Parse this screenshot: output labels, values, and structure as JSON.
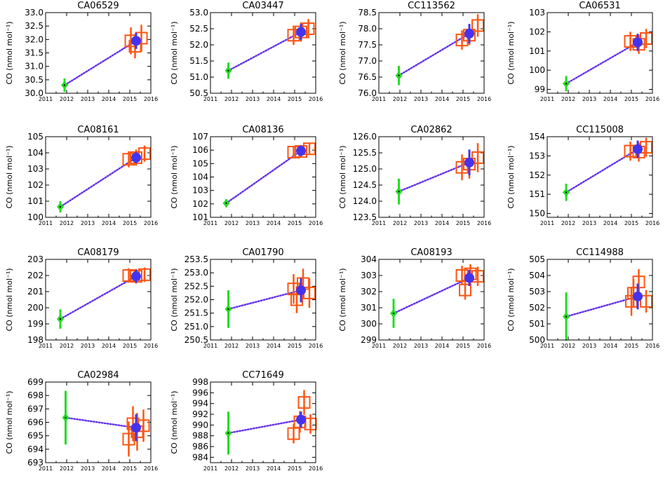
{
  "chart_data": [
    {
      "type": "scatter",
      "title": "CA06529",
      "ylabel": "CO (nmol mol⁻¹)",
      "xlim": [
        2011,
        2016
      ],
      "ylim": [
        30.0,
        33.0
      ],
      "yticks": [
        "30.0",
        "30.5",
        "31.0",
        "31.5",
        "32.0",
        "32.5",
        "33.0"
      ],
      "xticks": [
        "2011",
        "2012",
        "2013",
        "2014",
        "2015",
        "2016"
      ],
      "green": {
        "x": 2011.9,
        "y": 30.3,
        "err": 0.25
      },
      "blue": {
        "x": 2015.3,
        "y": 31.95,
        "err": 0.3
      },
      "orange": [
        {
          "x": 2015.05,
          "y": 31.95,
          "err": 0.5
        },
        {
          "x": 2015.25,
          "y": 31.75,
          "err": 0.45
        },
        {
          "x": 2015.55,
          "y": 32.05,
          "err": 0.5
        }
      ]
    },
    {
      "type": "scatter",
      "title": "CA03447",
      "ylabel": "CO (nmol mol⁻¹)",
      "xlim": [
        2011,
        2016
      ],
      "ylim": [
        50.5,
        53.0
      ],
      "yticks": [
        "50.5",
        "51.0",
        "51.5",
        "52.0",
        "52.5",
        "53.0"
      ],
      "xticks": [
        "2011",
        "2012",
        "2013",
        "2014",
        "2015",
        "2016"
      ],
      "green": {
        "x": 2011.85,
        "y": 51.2,
        "err": 0.25
      },
      "blue": {
        "x": 2015.3,
        "y": 52.4,
        "err": 0.25
      },
      "orange": [
        {
          "x": 2014.95,
          "y": 52.3,
          "err": 0.3
        },
        {
          "x": 2015.3,
          "y": 52.4,
          "err": 0.3
        },
        {
          "x": 2015.65,
          "y": 52.5,
          "err": 0.3
        }
      ]
    },
    {
      "type": "scatter",
      "title": "CC113562",
      "ylabel": "CO (nmol mol⁻¹)",
      "xlim": [
        2011,
        2016
      ],
      "ylim": [
        76.0,
        78.5
      ],
      "yticks": [
        "76.0",
        "76.5",
        "77.0",
        "77.5",
        "78.0",
        "78.5"
      ],
      "xticks": [
        "2011",
        "2012",
        "2013",
        "2014",
        "2015",
        "2016"
      ],
      "green": {
        "x": 2011.95,
        "y": 76.55,
        "err": 0.3
      },
      "blue": {
        "x": 2015.3,
        "y": 77.85,
        "err": 0.3
      },
      "orange": [
        {
          "x": 2014.95,
          "y": 77.65,
          "err": 0.3
        },
        {
          "x": 2015.3,
          "y": 77.8,
          "err": 0.3
        },
        {
          "x": 2015.7,
          "y": 78.1,
          "err": 0.35
        }
      ]
    },
    {
      "type": "scatter",
      "title": "CA06531",
      "ylabel": "CO (nmol mol⁻¹)",
      "xlim": [
        2011,
        2016
      ],
      "ylim": [
        98.8,
        103
      ],
      "yticks": [
        "99",
        "100",
        "101",
        "102",
        "103"
      ],
      "xticks": [
        "2011",
        "2012",
        "2013",
        "2014",
        "2015",
        "2016"
      ],
      "green": {
        "x": 2011.9,
        "y": 99.3,
        "err": 0.4
      },
      "blue": {
        "x": 2015.3,
        "y": 101.45,
        "err": 0.45
      },
      "orange": [
        {
          "x": 2014.95,
          "y": 101.5,
          "err": 0.5
        },
        {
          "x": 2015.35,
          "y": 101.35,
          "err": 0.5
        },
        {
          "x": 2015.7,
          "y": 101.65,
          "err": 0.5
        }
      ]
    },
    {
      "type": "scatter",
      "title": "CA08161",
      "ylabel": "CO (nmol mol⁻¹)",
      "xlim": [
        2011,
        2016
      ],
      "ylim": [
        100,
        105
      ],
      "yticks": [
        "100",
        "101",
        "102",
        "103",
        "104",
        "105"
      ],
      "xticks": [
        "2011",
        "2012",
        "2013",
        "2014",
        "2015",
        "2016"
      ],
      "green": {
        "x": 2011.7,
        "y": 100.65,
        "err": 0.35
      },
      "blue": {
        "x": 2015.3,
        "y": 103.7,
        "err": 0.35
      },
      "orange": [
        {
          "x": 2014.95,
          "y": 103.6,
          "err": 0.5
        },
        {
          "x": 2015.3,
          "y": 103.7,
          "err": 0.5
        },
        {
          "x": 2015.7,
          "y": 103.95,
          "err": 0.5
        }
      ]
    },
    {
      "type": "scatter",
      "title": "CA08136",
      "ylabel": "CO (nmol mol⁻¹)",
      "xlim": [
        2011,
        2016
      ],
      "ylim": [
        101,
        107
      ],
      "yticks": [
        "101",
        "102",
        "103",
        "104",
        "105",
        "106",
        "107"
      ],
      "xticks": [
        "2011",
        "2012",
        "2013",
        "2014",
        "2015",
        "2016"
      ],
      "green": {
        "x": 2011.75,
        "y": 102.05,
        "err": 0.3
      },
      "blue": {
        "x": 2015.3,
        "y": 105.95,
        "err": 0.4
      },
      "orange": [
        {
          "x": 2014.95,
          "y": 105.85,
          "err": 0.45
        },
        {
          "x": 2015.3,
          "y": 105.9,
          "err": 0.45
        },
        {
          "x": 2015.7,
          "y": 106.1,
          "err": 0.45
        }
      ]
    },
    {
      "type": "scatter",
      "title": "CA02862",
      "ylabel": "CO (nmol mol⁻¹)",
      "xlim": [
        2011,
        2016
      ],
      "ylim": [
        123.5,
        126.0
      ],
      "yticks": [
        "123.5",
        "124.0",
        "124.5",
        "125.0",
        "125.5",
        "126.0"
      ],
      "xticks": [
        "2011",
        "2012",
        "2013",
        "2014",
        "2015",
        "2016"
      ],
      "green": {
        "x": 2011.95,
        "y": 124.3,
        "err": 0.4
      },
      "blue": {
        "x": 2015.3,
        "y": 125.2,
        "err": 0.4
      },
      "orange": [
        {
          "x": 2014.95,
          "y": 125.05,
          "err": 0.4
        },
        {
          "x": 2015.3,
          "y": 125.15,
          "err": 0.45
        },
        {
          "x": 2015.7,
          "y": 125.35,
          "err": 0.45
        }
      ]
    },
    {
      "type": "scatter",
      "title": "CC115008",
      "ylabel": "CO (nmol mol⁻¹)",
      "xlim": [
        2011,
        2016
      ],
      "ylim": [
        149.8,
        154
      ],
      "yticks": [
        "150",
        "151",
        "152",
        "153",
        "154"
      ],
      "xticks": [
        "2011",
        "2012",
        "2013",
        "2014",
        "2015",
        "2016"
      ],
      "green": {
        "x": 2011.9,
        "y": 151.1,
        "err": 0.45
      },
      "blue": {
        "x": 2015.3,
        "y": 153.35,
        "err": 0.45
      },
      "orange": [
        {
          "x": 2014.95,
          "y": 153.25,
          "err": 0.5
        },
        {
          "x": 2015.35,
          "y": 153.2,
          "err": 0.5
        },
        {
          "x": 2015.7,
          "y": 153.45,
          "err": 0.5
        }
      ]
    },
    {
      "type": "scatter",
      "title": "CA08179",
      "ylabel": "CO (nmol mol⁻¹)",
      "xlim": [
        2011,
        2016
      ],
      "ylim": [
        198,
        203
      ],
      "yticks": [
        "198",
        "199",
        "200",
        "201",
        "202",
        "203"
      ],
      "xticks": [
        "2011",
        "2012",
        "2013",
        "2014",
        "2015",
        "2016"
      ],
      "green": {
        "x": 2011.7,
        "y": 199.3,
        "err": 0.6
      },
      "blue": {
        "x": 2015.3,
        "y": 201.95,
        "err": 0.4
      },
      "orange": [
        {
          "x": 2014.95,
          "y": 202.0,
          "err": 0.45
        },
        {
          "x": 2015.3,
          "y": 201.95,
          "err": 0.45
        },
        {
          "x": 2015.7,
          "y": 202.05,
          "err": 0.45
        }
      ]
    },
    {
      "type": "scatter",
      "title": "CA01790",
      "ylabel": "CO (nmol mol⁻¹)",
      "xlim": [
        2011,
        2016
      ],
      "ylim": [
        250.5,
        253.5
      ],
      "yticks": [
        "250.5",
        "251.0",
        "251.5",
        "252.0",
        "252.5",
        "253.0",
        "253.5"
      ],
      "xticks": [
        "2011",
        "2012",
        "2013",
        "2014",
        "2015",
        "2016"
      ],
      "green": {
        "x": 2011.85,
        "y": 251.65,
        "err": 0.7
      },
      "blue": {
        "x": 2015.3,
        "y": 252.35,
        "err": 0.45
      },
      "orange": [
        {
          "x": 2014.95,
          "y": 252.4,
          "err": 0.55
        },
        {
          "x": 2015.1,
          "y": 252.0,
          "err": 0.5
        },
        {
          "x": 2015.4,
          "y": 252.6,
          "err": 0.55
        },
        {
          "x": 2015.7,
          "y": 252.25,
          "err": 0.55
        }
      ]
    },
    {
      "type": "scatter",
      "title": "CA08193",
      "ylabel": "CO (nmol mol⁻¹)",
      "xlim": [
        2011,
        2016
      ],
      "ylim": [
        299,
        304
      ],
      "yticks": [
        "299",
        "300",
        "301",
        "302",
        "303",
        "304"
      ],
      "xticks": [
        "2011",
        "2012",
        "2013",
        "2014",
        "2015",
        "2016"
      ],
      "green": {
        "x": 2011.7,
        "y": 300.65,
        "err": 0.9
      },
      "blue": {
        "x": 2015.3,
        "y": 302.85,
        "err": 0.5
      },
      "orange": [
        {
          "x": 2014.95,
          "y": 303.0,
          "err": 0.6
        },
        {
          "x": 2015.1,
          "y": 302.1,
          "err": 0.6
        },
        {
          "x": 2015.35,
          "y": 303.1,
          "err": 0.6
        },
        {
          "x": 2015.7,
          "y": 302.95,
          "err": 0.6
        }
      ]
    },
    {
      "type": "scatter",
      "title": "CC114988",
      "ylabel": "CO (nmol mol⁻¹)",
      "xlim": [
        2011,
        2016
      ],
      "ylim": [
        500,
        505
      ],
      "yticks": [
        "500",
        "501",
        "502",
        "503",
        "504",
        "505"
      ],
      "xticks": [
        "2011",
        "2012",
        "2013",
        "2014",
        "2015",
        "2016"
      ],
      "green": {
        "x": 2011.9,
        "y": 501.45,
        "err": 1.5
      },
      "blue": {
        "x": 2015.3,
        "y": 502.7,
        "err": 0.8
      },
      "orange": [
        {
          "x": 2015.0,
          "y": 502.4,
          "err": 0.9
        },
        {
          "x": 2015.1,
          "y": 502.9,
          "err": 0.9
        },
        {
          "x": 2015.35,
          "y": 503.6,
          "err": 0.8
        },
        {
          "x": 2015.7,
          "y": 502.4,
          "err": 0.7
        }
      ]
    },
    {
      "type": "scatter",
      "title": "CA02984",
      "ylabel": "CO (nmol mol⁻¹)",
      "xlim": [
        2011,
        2016
      ],
      "ylim": [
        693,
        699
      ],
      "yticks": [
        "693",
        "694",
        "695",
        "696",
        "697",
        "698",
        "699"
      ],
      "xticks": [
        "2011",
        "2012",
        "2013",
        "2014",
        "2015",
        "2016"
      ],
      "green": {
        "x": 2011.95,
        "y": 696.35,
        "err": 2.0
      },
      "blue": {
        "x": 2015.3,
        "y": 695.6,
        "err": 1.0
      },
      "orange": [
        {
          "x": 2014.95,
          "y": 694.75,
          "err": 1.3
        },
        {
          "x": 2015.15,
          "y": 695.9,
          "err": 1.3
        },
        {
          "x": 2015.35,
          "y": 695.3,
          "err": 1.4
        },
        {
          "x": 2015.65,
          "y": 695.75,
          "err": 1.2
        }
      ]
    },
    {
      "type": "scatter",
      "title": "CC71649",
      "ylabel": "CO (nmol mol⁻¹)",
      "xlim": [
        2011,
        2016
      ],
      "ylim": [
        983,
        998
      ],
      "yticks": [
        "984",
        "986",
        "988",
        "990",
        "992",
        "994",
        "996",
        "998"
      ],
      "xticks": [
        "2011",
        "2012",
        "2013",
        "2014",
        "2015",
        "2016"
      ],
      "green": {
        "x": 2011.85,
        "y": 988.5,
        "err": 4.0
      },
      "blue": {
        "x": 2015.3,
        "y": 991.0,
        "err": 1.5
      },
      "orange": [
        {
          "x": 2014.95,
          "y": 988.4,
          "err": 1.8
        },
        {
          "x": 2015.25,
          "y": 990.6,
          "err": 2.0
        },
        {
          "x": 2015.45,
          "y": 994.2,
          "err": 2.3
        },
        {
          "x": 2015.75,
          "y": 990.2,
          "err": 1.8
        }
      ]
    }
  ],
  "colors": {
    "green": "#22dd22",
    "blue": "#4433ee",
    "orange": "#ff5511",
    "dots": "#6633ee",
    "axis": "#000000"
  }
}
